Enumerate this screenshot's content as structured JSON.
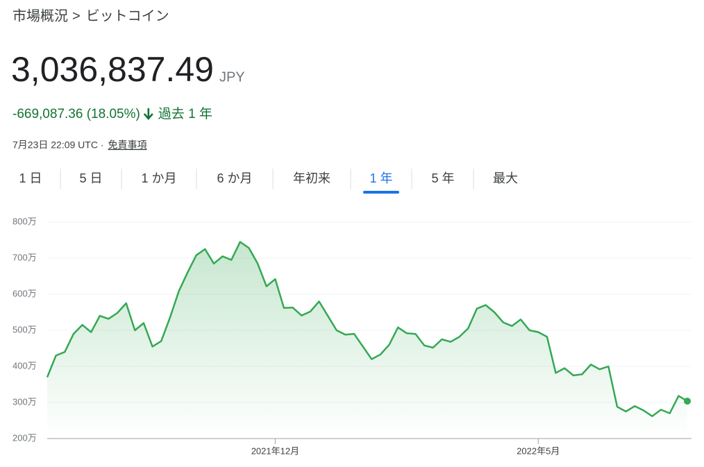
{
  "header": {
    "breadcrumb": {
      "parent": "市場概況",
      "separator": ">",
      "current": "ビットコイン"
    },
    "price": "3,036,837.49",
    "currency": "JPY",
    "change": "-669,087.36 (18.05%)",
    "period": "過去 1 年",
    "timestamp": "7月23日 22:09 UTC ·",
    "disclaimer": "免責事項"
  },
  "tabs": {
    "items": [
      "1 日",
      "5 日",
      "1 か月",
      "6 か月",
      "年初来",
      "1 年",
      "5 年",
      "最大"
    ],
    "selected": 5
  },
  "chart_data": {
    "type": "line",
    "color": "#34a853",
    "grid": true,
    "categories": [
      null,
      null,
      null,
      null,
      null,
      null,
      null,
      null,
      null,
      null,
      null,
      null,
      null,
      null,
      null,
      null,
      null,
      null,
      null,
      null,
      null,
      null,
      null,
      null,
      null,
      null,
      "2021年12月",
      null,
      null,
      null,
      null,
      null,
      null,
      null,
      null,
      null,
      null,
      null,
      null,
      null,
      null,
      null,
      null,
      null,
      null,
      null,
      null,
      null,
      null,
      null,
      null,
      null,
      null,
      null,
      null,
      null,
      "2022年5月",
      null,
      null,
      null,
      null,
      null,
      null,
      null,
      null,
      null,
      null,
      null,
      null,
      null,
      null,
      null,
      null,
      null
    ],
    "values": [
      3700000,
      4300000,
      4400000,
      4900000,
      5150000,
      4950000,
      5400000,
      5320000,
      5480000,
      5750000,
      5000000,
      5200000,
      4550000,
      4700000,
      5350000,
      6080000,
      6600000,
      7080000,
      7250000,
      6850000,
      7050000,
      6950000,
      7450000,
      7280000,
      6850000,
      6220000,
      6420000,
      5620000,
      5630000,
      5410000,
      5520000,
      5800000,
      5400000,
      5000000,
      4880000,
      4900000,
      4550000,
      4200000,
      4330000,
      4600000,
      5080000,
      4920000,
      4900000,
      4580000,
      4520000,
      4750000,
      4680000,
      4820000,
      5050000,
      5600000,
      5700000,
      5500000,
      5220000,
      5120000,
      5300000,
      5000000,
      4950000,
      4820000,
      3820000,
      3950000,
      3750000,
      3780000,
      4050000,
      3920000,
      4000000,
      2880000,
      2750000,
      2900000,
      2780000,
      2620000,
      2800000,
      2700000,
      3180000,
      3036837.49
    ],
    "ylim": [
      2000000,
      8000000
    ],
    "yticks": [
      {
        "value": 2000000,
        "label": "200万"
      },
      {
        "value": 3000000,
        "label": "300万"
      },
      {
        "value": 4000000,
        "label": "400万"
      },
      {
        "value": 5000000,
        "label": "500万"
      },
      {
        "value": 6000000,
        "label": "600万"
      },
      {
        "value": 7000000,
        "label": "700万"
      },
      {
        "value": 8000000,
        "label": "800万"
      }
    ]
  }
}
